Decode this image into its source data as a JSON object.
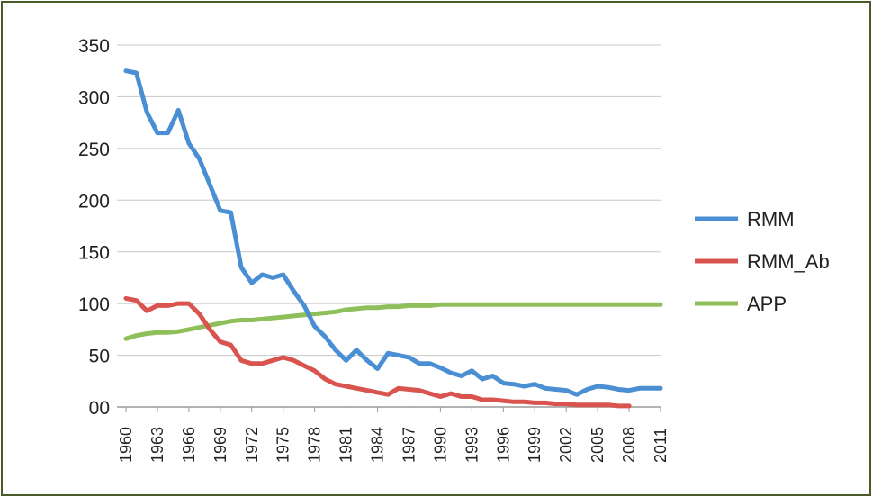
{
  "chart_data": {
    "type": "line",
    "title": "",
    "xlabel": "",
    "ylabel": "",
    "ylim": [
      0,
      350
    ],
    "xlim": [
      1960,
      2011
    ],
    "y_ticks": [
      "00",
      "50",
      "100",
      "150",
      "200",
      "250",
      "300",
      "350"
    ],
    "y_tick_values": [
      0,
      50,
      100,
      150,
      200,
      250,
      300,
      350
    ],
    "x_ticks": [
      "1960",
      "1963",
      "1966",
      "1969",
      "1972",
      "1975",
      "1978",
      "1981",
      "1984",
      "1987",
      "1990",
      "1993",
      "1996",
      "1999",
      "2002",
      "2005",
      "2008",
      "2011"
    ],
    "grid": true,
    "legend_position": "right",
    "series": [
      {
        "name": "RMM",
        "color": "#4a8fd4",
        "x": [
          1960,
          1961,
          1962,
          1963,
          1964,
          1965,
          1966,
          1967,
          1968,
          1969,
          1970,
          1971,
          1972,
          1973,
          1974,
          1975,
          1976,
          1977,
          1978,
          1979,
          1980,
          1981,
          1982,
          1983,
          1984,
          1985,
          1986,
          1987,
          1988,
          1989,
          1990,
          1991,
          1992,
          1993,
          1994,
          1995,
          1996,
          1997,
          1998,
          1999,
          2000,
          2001,
          2002,
          2003,
          2004,
          2005,
          2006,
          2007,
          2008,
          2009,
          2010,
          2011
        ],
        "values": [
          325,
          323,
          285,
          265,
          265,
          287,
          255,
          240,
          215,
          190,
          188,
          135,
          120,
          128,
          125,
          128,
          112,
          98,
          78,
          68,
          55,
          45,
          55,
          45,
          37,
          52,
          50,
          48,
          42,
          42,
          38,
          33,
          30,
          35,
          27,
          30,
          23,
          22,
          20,
          22,
          18,
          17,
          16,
          12,
          17,
          20,
          19,
          17,
          16,
          18,
          18,
          18
        ]
      },
      {
        "name": "RMM_Ab",
        "color": "#d9534f",
        "x": [
          1960,
          1961,
          1962,
          1963,
          1964,
          1965,
          1966,
          1967,
          1968,
          1969,
          1970,
          1971,
          1972,
          1973,
          1974,
          1975,
          1976,
          1977,
          1978,
          1979,
          1980,
          1981,
          1982,
          1983,
          1984,
          1985,
          1986,
          1987,
          1988,
          1989,
          1990,
          1991,
          1992,
          1993,
          1994,
          1995,
          1996,
          1997,
          1998,
          1999,
          2000,
          2001,
          2002,
          2003,
          2004,
          2005,
          2006,
          2007,
          2008
        ],
        "values": [
          105,
          103,
          93,
          98,
          98,
          100,
          100,
          90,
          75,
          63,
          60,
          45,
          42,
          42,
          45,
          48,
          45,
          40,
          35,
          27,
          22,
          20,
          18,
          16,
          14,
          12,
          18,
          17,
          16,
          13,
          10,
          13,
          10,
          10,
          7,
          7,
          6,
          5,
          5,
          4,
          4,
          3,
          3,
          2,
          2,
          2,
          2,
          1,
          1
        ]
      },
      {
        "name": "APP",
        "color": "#8fbf5a",
        "x": [
          1960,
          1961,
          1962,
          1963,
          1964,
          1965,
          1966,
          1967,
          1968,
          1969,
          1970,
          1971,
          1972,
          1973,
          1974,
          1975,
          1976,
          1977,
          1978,
          1979,
          1980,
          1981,
          1982,
          1983,
          1984,
          1985,
          1986,
          1987,
          1988,
          1989,
          1990,
          1991,
          1992,
          1993,
          1994,
          1995,
          1996,
          1997,
          1998,
          1999,
          2000,
          2001,
          2002,
          2003,
          2004,
          2005,
          2006,
          2007,
          2008,
          2009,
          2010,
          2011
        ],
        "values": [
          66,
          69,
          71,
          72,
          72,
          73,
          75,
          77,
          79,
          81,
          83,
          84,
          84,
          85,
          86,
          87,
          88,
          89,
          90,
          91,
          92,
          94,
          95,
          96,
          96,
          97,
          97,
          98,
          98,
          98,
          99,
          99,
          99,
          99,
          99,
          99,
          99,
          99,
          99,
          99,
          99,
          99,
          99,
          99,
          99,
          99,
          99,
          99,
          99,
          99,
          99,
          99
        ]
      }
    ]
  }
}
